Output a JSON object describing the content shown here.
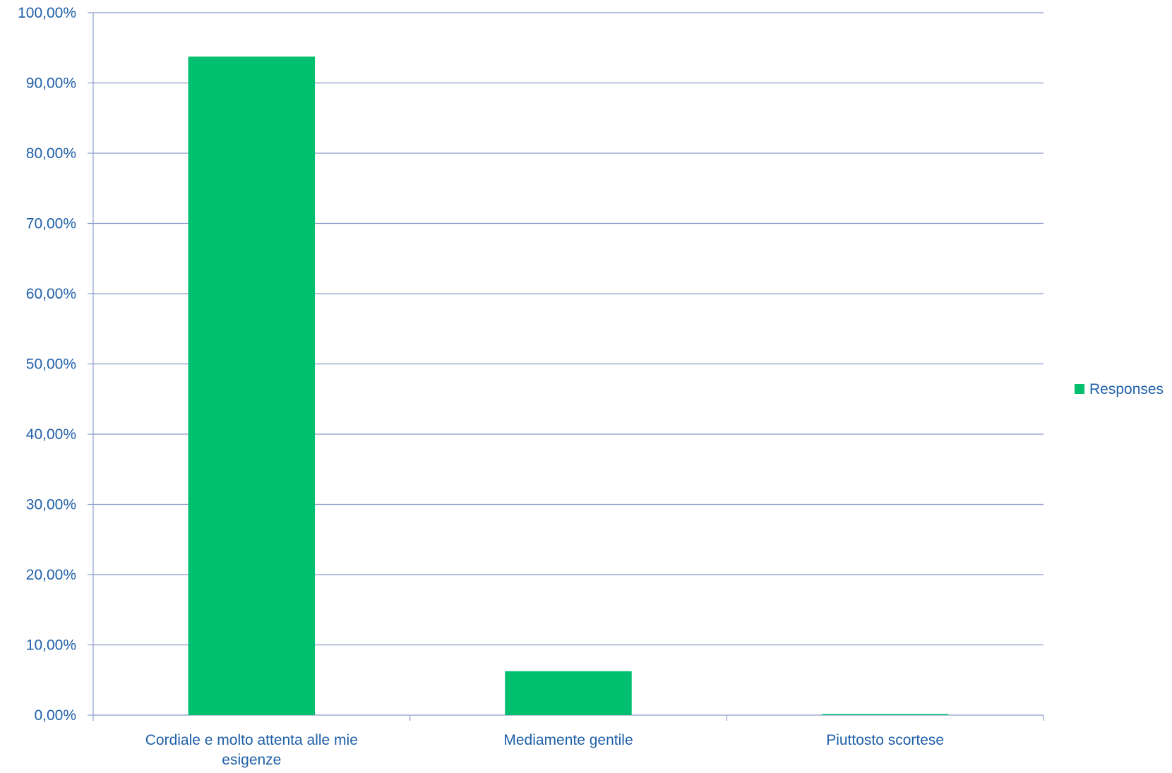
{
  "chart_data": {
    "type": "bar",
    "title": "",
    "xlabel": "",
    "ylabel": "",
    "categories": [
      [
        "Cordiale e molto attenta alle mie",
        "esigenze"
      ],
      [
        "Mediamente gentile"
      ],
      [
        "Piuttosto scortese"
      ]
    ],
    "series": [
      {
        "name": "Responses",
        "values": [
          93.75,
          6.25,
          0.0
        ],
        "color": "#00bf6f"
      }
    ],
    "ylim": [
      0,
      100
    ],
    "yticks": [
      0,
      10,
      20,
      30,
      40,
      50,
      60,
      70,
      80,
      90,
      100
    ],
    "ytick_labels": [
      "0,00%",
      "10,00%",
      "20,00%",
      "30,00%",
      "40,00%",
      "50,00%",
      "60,00%",
      "70,00%",
      "80,00%",
      "90,00%",
      "100,00%"
    ],
    "grid": true,
    "legend": {
      "placement": "right",
      "entries": [
        "Responses"
      ]
    },
    "colors": {
      "text": "#1f5fa8",
      "gridline": "#8a9cc8",
      "axis": "#8a9cc8",
      "bar": "#00bf6f"
    }
  }
}
